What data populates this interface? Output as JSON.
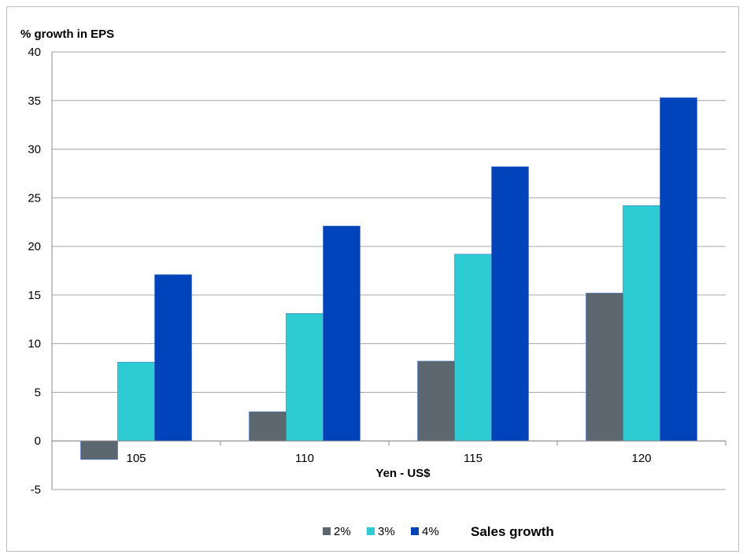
{
  "chart_data": {
    "type": "bar",
    "title": "",
    "ylabel": "% growth in EPS",
    "xlabel": "Yen - US$",
    "categories": [
      "105",
      "110",
      "115",
      "120"
    ],
    "ylim": [
      -5,
      40
    ],
    "yticks": [
      -5,
      0,
      5,
      10,
      15,
      20,
      25,
      30,
      35,
      40
    ],
    "grid": true,
    "legend_position": "bottom",
    "legend_title": "Sales growth",
    "series": [
      {
        "name": "2%",
        "color": "#5d6770",
        "values": [
          -1.9,
          3,
          8.2,
          15.2
        ]
      },
      {
        "name": "3%",
        "color": "#2dccd3",
        "values": [
          8.1,
          13.1,
          19.2,
          24.2
        ]
      },
      {
        "name": "4%",
        "color": "#0043bb",
        "values": [
          17.1,
          22.1,
          28.2,
          35.3
        ]
      }
    ]
  }
}
